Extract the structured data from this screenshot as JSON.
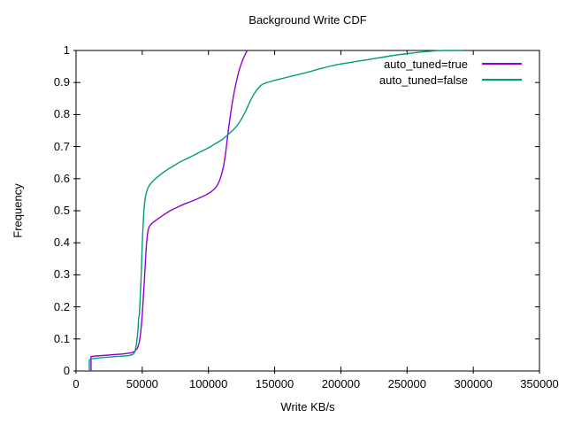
{
  "chart_data": {
    "type": "line",
    "title": "Background Write CDF",
    "xlabel": "Write KB/s",
    "ylabel": "Frequency",
    "xlim": [
      0,
      350000
    ],
    "ylim": [
      0,
      1
    ],
    "grid": false,
    "legend_position": "top-right-inside",
    "x_tick_values": [
      0,
      50000,
      100000,
      150000,
      200000,
      250000,
      300000,
      350000
    ],
    "x_tick_labels": [
      "0",
      "50000",
      "100000",
      "150000",
      "200000",
      "250000",
      "300000",
      "350000"
    ],
    "y_tick_values": [
      0,
      0.1,
      0.2,
      0.3,
      0.4,
      0.5,
      0.6,
      0.7,
      0.8,
      0.9,
      1
    ],
    "y_tick_labels": [
      "0",
      "0.1",
      "0.2",
      "0.3",
      "0.4",
      "0.5",
      "0.6",
      "0.7",
      "0.8",
      "0.9",
      "1"
    ],
    "series": [
      {
        "name": "auto_tuned=true",
        "color": "#9400d3",
        "points": [
          [
            11300,
            0
          ],
          [
            11300,
            0.045
          ],
          [
            15000,
            0.047
          ],
          [
            25000,
            0.05
          ],
          [
            35000,
            0.053
          ],
          [
            42000,
            0.057
          ],
          [
            44500,
            0.062
          ],
          [
            46500,
            0.072
          ],
          [
            47800,
            0.09
          ],
          [
            48800,
            0.12
          ],
          [
            49600,
            0.155
          ],
          [
            50300,
            0.195
          ],
          [
            50900,
            0.235
          ],
          [
            51500,
            0.275
          ],
          [
            52100,
            0.32
          ],
          [
            52700,
            0.365
          ],
          [
            53300,
            0.4
          ],
          [
            53900,
            0.425
          ],
          [
            54500,
            0.442
          ],
          [
            55500,
            0.452
          ],
          [
            57000,
            0.459
          ],
          [
            59000,
            0.466
          ],
          [
            62000,
            0.475
          ],
          [
            65000,
            0.484
          ],
          [
            68000,
            0.492
          ],
          [
            71000,
            0.5
          ],
          [
            75000,
            0.508
          ],
          [
            79000,
            0.516
          ],
          [
            83000,
            0.523
          ],
          [
            87000,
            0.529
          ],
          [
            91000,
            0.536
          ],
          [
            95000,
            0.543
          ],
          [
            99000,
            0.551
          ],
          [
            102000,
            0.559
          ],
          [
            104500,
            0.568
          ],
          [
            106500,
            0.578
          ],
          [
            108500,
            0.595
          ],
          [
            110000,
            0.615
          ],
          [
            111500,
            0.64
          ],
          [
            112800,
            0.675
          ],
          [
            113800,
            0.71
          ],
          [
            114800,
            0.745
          ],
          [
            115800,
            0.775
          ],
          [
            116800,
            0.805
          ],
          [
            117800,
            0.832
          ],
          [
            118800,
            0.857
          ],
          [
            119800,
            0.878
          ],
          [
            120800,
            0.898
          ],
          [
            121800,
            0.916
          ],
          [
            122800,
            0.932
          ],
          [
            123800,
            0.946
          ],
          [
            124800,
            0.958
          ],
          [
            125800,
            0.969
          ],
          [
            126800,
            0.979
          ],
          [
            127800,
            0.988
          ],
          [
            128800,
            0.996
          ],
          [
            129500,
            1.0
          ]
        ]
      },
      {
        "name": "auto_tuned=false",
        "color": "#009e73",
        "points": [
          [
            10000,
            0
          ],
          [
            10000,
            0.035
          ],
          [
            12000,
            0.038
          ],
          [
            20000,
            0.042
          ],
          [
            30000,
            0.045
          ],
          [
            40000,
            0.048
          ],
          [
            43000,
            0.052
          ],
          [
            44500,
            0.06
          ],
          [
            45500,
            0.08
          ],
          [
            46200,
            0.105
          ],
          [
            46800,
            0.13
          ],
          [
            47200,
            0.165
          ],
          [
            47800,
            0.175
          ],
          [
            48200,
            0.21
          ],
          [
            48700,
            0.25
          ],
          [
            49200,
            0.3
          ],
          [
            49700,
            0.36
          ],
          [
            50200,
            0.42
          ],
          [
            50700,
            0.46
          ],
          [
            51200,
            0.5
          ],
          [
            52000,
            0.535
          ],
          [
            53000,
            0.555
          ],
          [
            54200,
            0.57
          ],
          [
            55500,
            0.58
          ],
          [
            57500,
            0.59
          ],
          [
            60000,
            0.6
          ],
          [
            63000,
            0.61
          ],
          [
            66000,
            0.62
          ],
          [
            70000,
            0.631
          ],
          [
            74000,
            0.641
          ],
          [
            78000,
            0.651
          ],
          [
            82000,
            0.659
          ],
          [
            86000,
            0.667
          ],
          [
            90000,
            0.675
          ],
          [
            94000,
            0.684
          ],
          [
            98000,
            0.692
          ],
          [
            102000,
            0.701
          ],
          [
            106000,
            0.711
          ],
          [
            110000,
            0.721
          ],
          [
            113000,
            0.731
          ],
          [
            116000,
            0.742
          ],
          [
            119000,
            0.754
          ],
          [
            121500,
            0.765
          ],
          [
            124000,
            0.78
          ],
          [
            126000,
            0.794
          ],
          [
            128000,
            0.81
          ],
          [
            130000,
            0.828
          ],
          [
            132000,
            0.846
          ],
          [
            134000,
            0.861
          ],
          [
            136000,
            0.874
          ],
          [
            138000,
            0.884
          ],
          [
            139500,
            0.891
          ],
          [
            142000,
            0.897
          ],
          [
            146000,
            0.902
          ],
          [
            150000,
            0.907
          ],
          [
            155000,
            0.912
          ],
          [
            160000,
            0.917
          ],
          [
            165000,
            0.922
          ],
          [
            170000,
            0.927
          ],
          [
            175000,
            0.932
          ],
          [
            180000,
            0.938
          ],
          [
            185000,
            0.944
          ],
          [
            190000,
            0.949
          ],
          [
            195000,
            0.954
          ],
          [
            200000,
            0.958
          ],
          [
            206000,
            0.962
          ],
          [
            212000,
            0.966
          ],
          [
            218000,
            0.97
          ],
          [
            224000,
            0.974
          ],
          [
            230000,
            0.978
          ],
          [
            236000,
            0.982
          ],
          [
            242000,
            0.986
          ],
          [
            248000,
            0.989
          ],
          [
            254000,
            0.992
          ],
          [
            260000,
            0.995
          ],
          [
            266000,
            0.997
          ],
          [
            272000,
            0.999
          ],
          [
            278000,
            1.0
          ],
          [
            292000,
            1.0
          ]
        ]
      }
    ]
  }
}
